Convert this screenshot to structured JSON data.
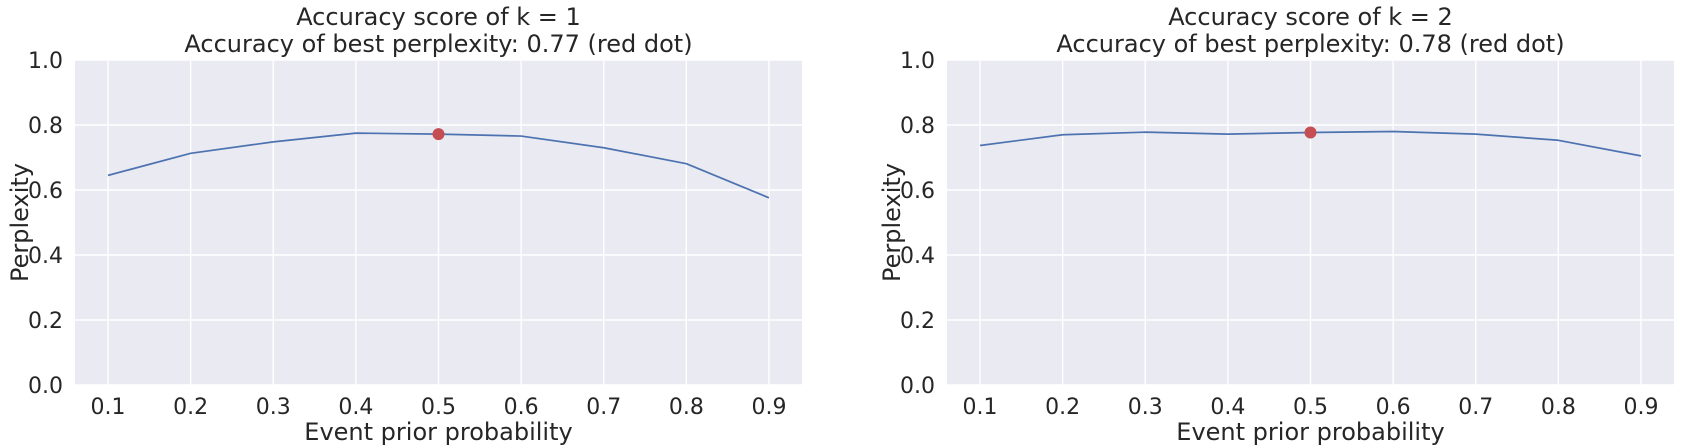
{
  "chart_data": [
    {
      "type": "line",
      "title": "Accuracy score of k = 1",
      "subtitle": "Accuracy of best perplexity: 0.77 (red dot)",
      "xlabel": "Event prior probability",
      "ylabel": "Perplexity",
      "x": [
        0.1,
        0.2,
        0.3,
        0.4,
        0.5,
        0.6,
        0.7,
        0.8,
        0.9
      ],
      "x_tick_labels": [
        "0.1",
        "0.2",
        "0.3",
        "0.4",
        "0.5",
        "0.6",
        "0.7",
        "0.8",
        "0.9"
      ],
      "y_ticks": [
        0.0,
        0.2,
        0.4,
        0.6,
        0.8,
        1.0
      ],
      "y_tick_labels": [
        "0.0",
        "0.2",
        "0.4",
        "0.6",
        "0.8",
        "1.0"
      ],
      "xlim": [
        0.06,
        0.94
      ],
      "ylim": [
        0.0,
        1.0
      ],
      "grid": true,
      "series": [
        {
          "values": [
            0.645,
            0.713,
            0.748,
            0.775,
            0.772,
            0.766,
            0.73,
            0.681,
            0.576
          ],
          "color": "#4c72b0"
        }
      ],
      "highlight": {
        "x": 0.5,
        "y": 0.772,
        "color": "#c44e52"
      }
    },
    {
      "type": "line",
      "title": "Accuracy score of k = 2",
      "subtitle": "Accuracy of best perplexity: 0.78 (red dot)",
      "xlabel": "Event prior probability",
      "ylabel": "Perplexity",
      "x": [
        0.1,
        0.2,
        0.3,
        0.4,
        0.5,
        0.6,
        0.7,
        0.8,
        0.9
      ],
      "x_tick_labels": [
        "0.1",
        "0.2",
        "0.3",
        "0.4",
        "0.5",
        "0.6",
        "0.7",
        "0.8",
        "0.9"
      ],
      "y_ticks": [
        0.0,
        0.2,
        0.4,
        0.6,
        0.8,
        1.0
      ],
      "y_tick_labels": [
        "0.0",
        "0.2",
        "0.4",
        "0.6",
        "0.8",
        "1.0"
      ],
      "xlim": [
        0.06,
        0.94
      ],
      "ylim": [
        0.0,
        1.0
      ],
      "grid": true,
      "series": [
        {
          "values": [
            0.737,
            0.77,
            0.778,
            0.772,
            0.777,
            0.78,
            0.772,
            0.753,
            0.705
          ],
          "color": "#4c72b0"
        }
      ],
      "highlight": {
        "x": 0.5,
        "y": 0.777,
        "color": "#c44e52"
      }
    }
  ]
}
